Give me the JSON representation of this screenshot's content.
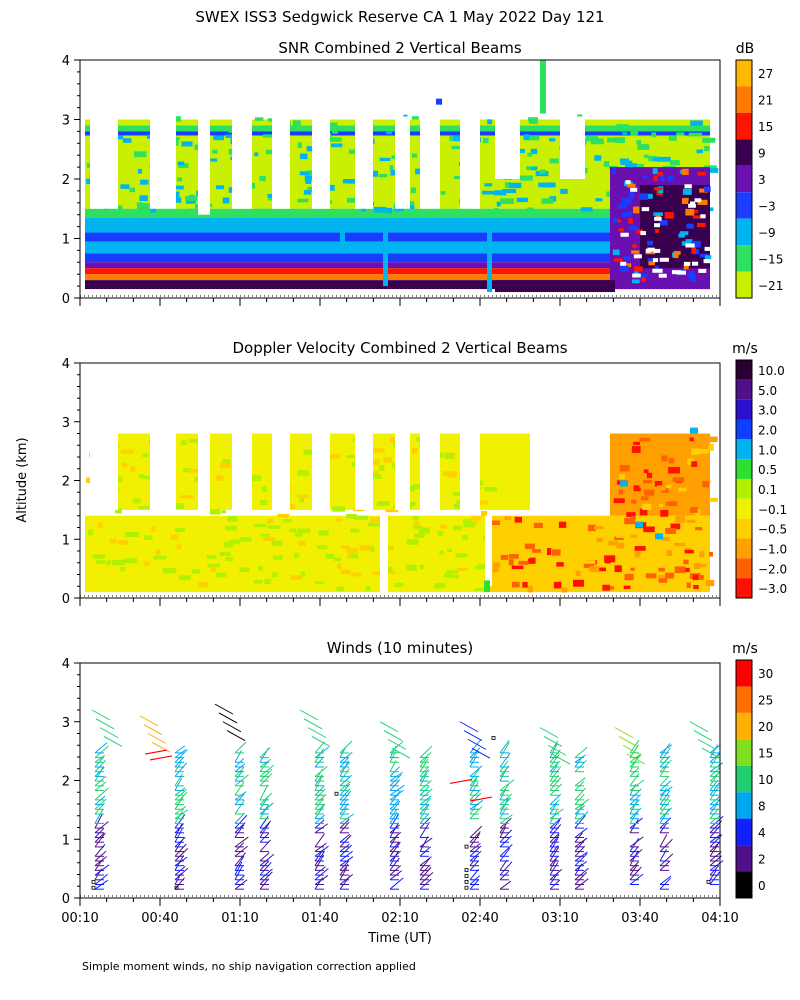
{
  "figure": {
    "title": "SWEX ISS3 Sedgwick Reserve CA    1 May 2022 Day 121",
    "footnote": "Simple moment winds, no ship navigation correction applied",
    "shared_ylabel": "Altitude (km)",
    "shared_xlabel": "Time (UT)"
  },
  "chart_data": [
    {
      "type": "heatmap",
      "title": "SNR Combined 2 Vertical Beams",
      "ylabel": "Altitude (km)",
      "ylim": [
        0,
        4
      ],
      "yticks": [
        "0",
        "1",
        "2",
        "3",
        "4"
      ],
      "x_range": [
        "00:10",
        "04:10"
      ],
      "colorbar": {
        "unit": "dB",
        "labels": [
          "27",
          "21",
          "15",
          "9",
          "3",
          "−3",
          "−9",
          "−15",
          "−21"
        ],
        "colors": [
          "#ffb800",
          "#ff7a00",
          "#ff1500",
          "#3a0050",
          "#6a10b0",
          "#1a3cff",
          "#00b4f0",
          "#2fe060",
          "#c8f000"
        ]
      },
      "description_values": {
        "low_layer_0_0.5km": "27 to 3 dB",
        "band_0.5_1.4km": "-3 to -9 dB",
        "upper_1.4_3km": "-15 to -21 dB"
      }
    },
    {
      "type": "heatmap",
      "title": "Doppler Velocity Combined 2 Vertical Beams",
      "ylabel": "Altitude (km)",
      "ylim": [
        0,
        4
      ],
      "yticks": [
        "0",
        "1",
        "2",
        "3",
        "4"
      ],
      "x_range": [
        "00:10",
        "04:10"
      ],
      "colorbar": {
        "unit": "m/s",
        "labels": [
          "10.0",
          "5.0",
          "3.0",
          "2.0",
          "1.0",
          "0.5",
          "0.1",
          "−0.1",
          "−0.5",
          "−1.0",
          "−2.0",
          "−3.0"
        ],
        "colors": [
          "#2a0030",
          "#50108a",
          "#2a10d0",
          "#1040ff",
          "#00b4f0",
          "#30e030",
          "#b0f000",
          "#f0f000",
          "#ffd000",
          "#ffa000",
          "#ff6000",
          "#ff1000"
        ]
      }
    },
    {
      "type": "scatter",
      "title": "Winds (10 minutes)",
      "ylabel": "Altitude (km)",
      "xlabel": "Time (UT)",
      "ylim": [
        0,
        4
      ],
      "yticks": [
        "0",
        "1",
        "2",
        "3",
        "4"
      ],
      "xticks": [
        "00:10",
        "00:40",
        "01:10",
        "01:40",
        "02:10",
        "02:40",
        "03:10",
        "03:40",
        "04:10"
      ],
      "colorbar": {
        "unit": "m/s",
        "labels": [
          "30",
          "25",
          "20",
          "15",
          "10",
          "8",
          "4",
          "2",
          "0"
        ],
        "colors": [
          "#ff0000",
          "#ff7000",
          "#ffb000",
          "#80e020",
          "#20d070",
          "#00a8f0",
          "#1020ff",
          "#50108a",
          "#000000"
        ]
      }
    }
  ]
}
